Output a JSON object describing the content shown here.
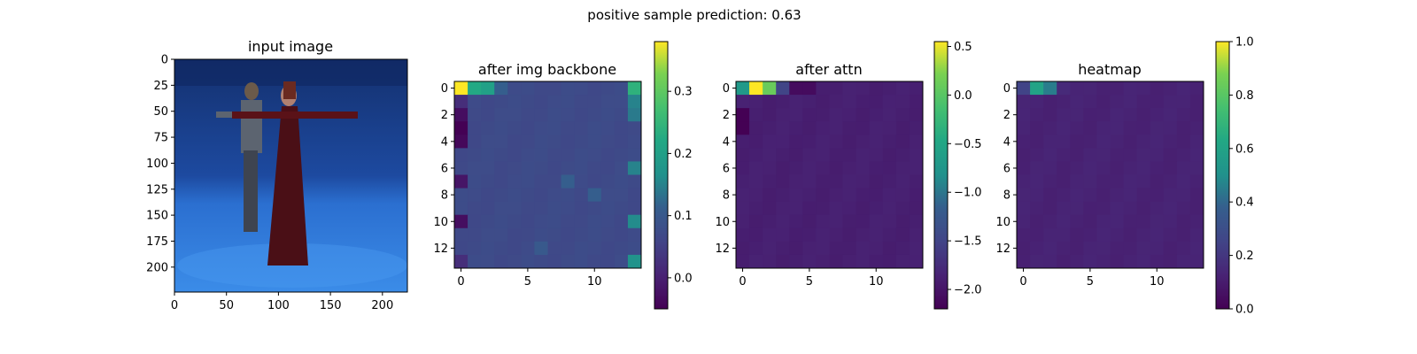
{
  "suptitle": "positive sample      prediction: 0.63",
  "chart_data": [
    {
      "type": "image",
      "title": "input image",
      "description_of_pixels": "photo: two people standing with arms outstretched in a blue-lit capture studio",
      "xticks": [
        "0",
        "50",
        "100",
        "150",
        "200"
      ],
      "yticks": [
        "0",
        "25",
        "50",
        "75",
        "100",
        "125",
        "150",
        "175",
        "200"
      ],
      "xlim": [
        0,
        224
      ],
      "ylim": [
        224,
        0
      ],
      "colors": {
        "background": "#1f4fa8",
        "floor": "#2f7fe0",
        "wall": "#163d8a",
        "dress": "#4a0f16"
      }
    },
    {
      "type": "heatmap",
      "title": "after img backbone",
      "xticks": [
        "0",
        "5",
        "10"
      ],
      "yticks": [
        "0",
        "2",
        "4",
        "6",
        "8",
        "10",
        "12"
      ],
      "grid_size": [
        14,
        14
      ],
      "colorbar_ticks": [
        "0.0",
        "0.1",
        "0.2",
        "0.3"
      ],
      "vmin": -0.05,
      "vmax": 0.38,
      "cells": [
        {
          "x": 0,
          "y": 0,
          "value": 0.38
        },
        {
          "x": 1,
          "y": 0,
          "value": 0.22
        },
        {
          "x": 2,
          "y": 0,
          "value": 0.2
        },
        {
          "x": 3,
          "y": 0,
          "value": 0.11
        },
        {
          "x": 13,
          "y": 0,
          "value": 0.24
        },
        {
          "x": 0,
          "y": 1,
          "value": 0.02
        },
        {
          "x": 13,
          "y": 1,
          "value": 0.15
        },
        {
          "x": 0,
          "y": 2,
          "value": -0.03
        },
        {
          "x": 0,
          "y": 3,
          "value": -0.05
        },
        {
          "x": 0,
          "y": 4,
          "value": -0.04
        },
        {
          "x": 0,
          "y": 7,
          "value": -0.02
        },
        {
          "x": 0,
          "y": 10,
          "value": -0.03
        },
        {
          "x": 0,
          "y": 13,
          "value": 0.02
        },
        {
          "x": 13,
          "y": 2,
          "value": 0.14
        },
        {
          "x": 13,
          "y": 6,
          "value": 0.15
        },
        {
          "x": 13,
          "y": 10,
          "value": 0.16
        },
        {
          "x": 13,
          "y": 13,
          "value": 0.17
        },
        {
          "x": 8,
          "y": 7,
          "value": 0.11
        },
        {
          "x": 10,
          "y": 8,
          "value": 0.11
        },
        {
          "x": 6,
          "y": 12,
          "value": 0.1
        }
      ],
      "default_value": 0.07
    },
    {
      "type": "heatmap",
      "title": "after attn",
      "xticks": [
        "0",
        "5",
        "10"
      ],
      "yticks": [
        "0",
        "2",
        "4",
        "6",
        "8",
        "10",
        "12"
      ],
      "grid_size": [
        14,
        14
      ],
      "colorbar_ticks": [
        "0.5",
        "0.0",
        "−0.5",
        "−1.0",
        "−1.5",
        "−2.0"
      ],
      "vmin": -2.2,
      "vmax": 0.55,
      "cells": [
        {
          "x": 0,
          "y": 0,
          "value": -0.7
        },
        {
          "x": 1,
          "y": 0,
          "value": 0.55
        },
        {
          "x": 2,
          "y": 0,
          "value": 0.1
        },
        {
          "x": 3,
          "y": 0,
          "value": -1.5
        },
        {
          "x": 4,
          "y": 0,
          "value": -2.1
        },
        {
          "x": 5,
          "y": 0,
          "value": -2.1
        },
        {
          "x": 0,
          "y": 2,
          "value": -2.2
        },
        {
          "x": 0,
          "y": 3,
          "value": -2.2
        }
      ],
      "default_value": -1.9
    },
    {
      "type": "heatmap",
      "title": "heatmap",
      "xticks": [
        "0",
        "5",
        "10"
      ],
      "yticks": [
        "0",
        "2",
        "4",
        "6",
        "8",
        "10",
        "12"
      ],
      "grid_size": [
        14,
        14
      ],
      "colorbar_ticks": [
        "1.0",
        "0.8",
        "0.6",
        "0.4",
        "0.2",
        "0.0"
      ],
      "vmin": 0.0,
      "vmax": 1.0,
      "cells": [
        {
          "x": 0,
          "y": 0,
          "value": 0.25
        },
        {
          "x": 1,
          "y": 0,
          "value": 0.6
        },
        {
          "x": 2,
          "y": 0,
          "value": 0.45
        },
        {
          "x": 3,
          "y": 0,
          "value": 0.15
        }
      ],
      "default_value": 0.12
    }
  ]
}
